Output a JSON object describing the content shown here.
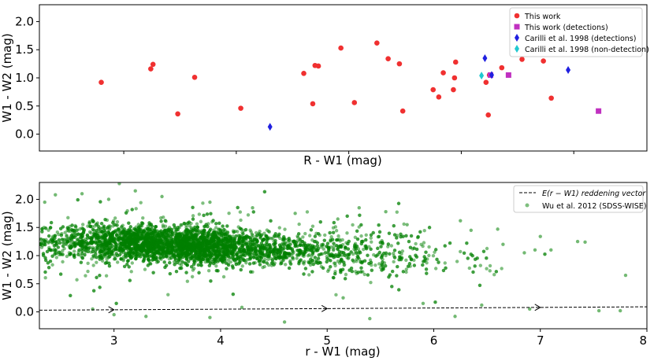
{
  "chart_data": [
    {
      "type": "scatter",
      "title": "",
      "xlabel": "R - W1 (mag)",
      "ylabel": "W1 - W2 (mag)",
      "xlim": [
        2.25,
        7.65
      ],
      "ylim": [
        -0.3,
        2.3
      ],
      "yticks": [
        "0.0",
        "0.5",
        "1.0",
        "1.5",
        "2.0"
      ],
      "xtick_values": [
        3,
        4,
        5,
        6,
        7
      ],
      "xtick_labels_shown": false,
      "legend": "top-right",
      "grid": false,
      "series": [
        {
          "name": "This work",
          "marker": "circle",
          "color": "#f03030",
          "points": [
            [
              2.8,
              0.92
            ],
            [
              3.24,
              1.16
            ],
            [
              3.26,
              1.24
            ],
            [
              3.48,
              0.36
            ],
            [
              3.63,
              1.01
            ],
            [
              4.04,
              0.46
            ],
            [
              4.6,
              1.08
            ],
            [
              4.68,
              0.54
            ],
            [
              4.7,
              1.22
            ],
            [
              4.73,
              1.21
            ],
            [
              4.93,
              1.53
            ],
            [
              5.05,
              0.56
            ],
            [
              5.25,
              1.62
            ],
            [
              5.35,
              1.34
            ],
            [
              5.45,
              1.25
            ],
            [
              5.48,
              0.41
            ],
            [
              5.75,
              0.79
            ],
            [
              5.8,
              0.66
            ],
            [
              5.84,
              1.09
            ],
            [
              5.93,
              0.79
            ],
            [
              5.94,
              1.0
            ],
            [
              5.95,
              1.28
            ],
            [
              6.22,
              0.92
            ],
            [
              6.24,
              0.34
            ],
            [
              6.25,
              1.05
            ],
            [
              6.36,
              1.18
            ],
            [
              6.54,
              1.33
            ],
            [
              6.73,
              1.3
            ],
            [
              6.8,
              0.64
            ]
          ]
        },
        {
          "name": "This work (detections)",
          "marker": "square",
          "color": "#c030c0",
          "points": [
            [
              6.26,
              1.05
            ],
            [
              6.42,
              1.05
            ],
            [
              7.22,
              0.41
            ]
          ]
        },
        {
          "name": "Carilli et al. 1998 (detections)",
          "marker": "diamond",
          "color": "#2020e0",
          "points": [
            [
              4.3,
              0.13
            ],
            [
              6.21,
              1.35
            ],
            [
              6.27,
              1.05
            ],
            [
              6.95,
              1.14
            ]
          ]
        },
        {
          "name": "Carilli et al. 1998 (non-detection)",
          "marker": "diamond",
          "color": "#20c8d0",
          "points": [
            [
              6.18,
              1.04
            ]
          ]
        }
      ]
    },
    {
      "type": "scatter",
      "title": "",
      "xlabel": "r - W1 (mag)",
      "ylabel": "W1 - W2 (mag)",
      "xlim": [
        2.3,
        8.0
      ],
      "ylim": [
        -0.3,
        2.3
      ],
      "xticks": [
        "3",
        "4",
        "5",
        "6",
        "7",
        "8"
      ],
      "yticks": [
        "0.0",
        "0.5",
        "1.0",
        "1.5",
        "2.0"
      ],
      "legend": "top-right",
      "grid": false,
      "series": [
        {
          "name": "Wu et al. 2012 (SDSS-WISE)",
          "marker": "circle",
          "color": "#008000",
          "note_density": "dense cloud centred near x=3.3, y=1.2, elongated toward x~5.3, y~1.05, sparse tail to x~7.8",
          "points": [
            [
              2.35,
              1.95
            ],
            [
              2.45,
              2.08
            ],
            [
              2.7,
              2.1
            ],
            [
              2.95,
              2.0
            ],
            [
              3.05,
              2.28
            ],
            [
              3.2,
              2.15
            ],
            [
              3.45,
              2.05
            ],
            [
              3.9,
              1.95
            ],
            [
              4.3,
              1.85
            ],
            [
              4.7,
              1.75
            ],
            [
              5.1,
              1.65
            ],
            [
              5.3,
              1.85
            ],
            [
              5.55,
              1.78
            ],
            [
              5.75,
              1.55
            ],
            [
              5.85,
              1.32
            ],
            [
              6.25,
              1.62
            ],
            [
              6.35,
              1.45
            ],
            [
              6.6,
              1.47
            ],
            [
              6.65,
              1.2
            ],
            [
              6.85,
              1.05
            ],
            [
              6.95,
              1.1
            ],
            [
              7.0,
              1.34
            ],
            [
              7.1,
              1.1
            ],
            [
              7.35,
              1.25
            ],
            [
              7.42,
              1.24
            ],
            [
              7.55,
              0.02
            ],
            [
              7.8,
              0.65
            ],
            [
              7.75,
              0.02
            ],
            [
              6.9,
              0.05
            ],
            [
              6.2,
              -0.08
            ],
            [
              5.4,
              -0.12
            ],
            [
              4.6,
              -0.18
            ],
            [
              3.9,
              -0.1
            ],
            [
              3.3,
              -0.08
            ],
            [
              2.8,
              0.05
            ],
            [
              3.0,
              -0.05
            ],
            [
              4.2,
              0.08
            ],
            [
              5.9,
              0.15
            ],
            [
              6.45,
              0.12
            ],
            [
              5.15,
              0.25
            ]
          ]
        }
      ],
      "reference_line": {
        "name": "E(r - W1) reddening vector",
        "legend_label_tex": "E(r − W1) reddening vector",
        "style": "dashed",
        "color": "#000000",
        "x": [
          2.3,
          8.0
        ],
        "y": [
          0.03,
          0.09
        ],
        "arrow_x": [
          3.0,
          5.0,
          7.0
        ]
      }
    }
  ]
}
